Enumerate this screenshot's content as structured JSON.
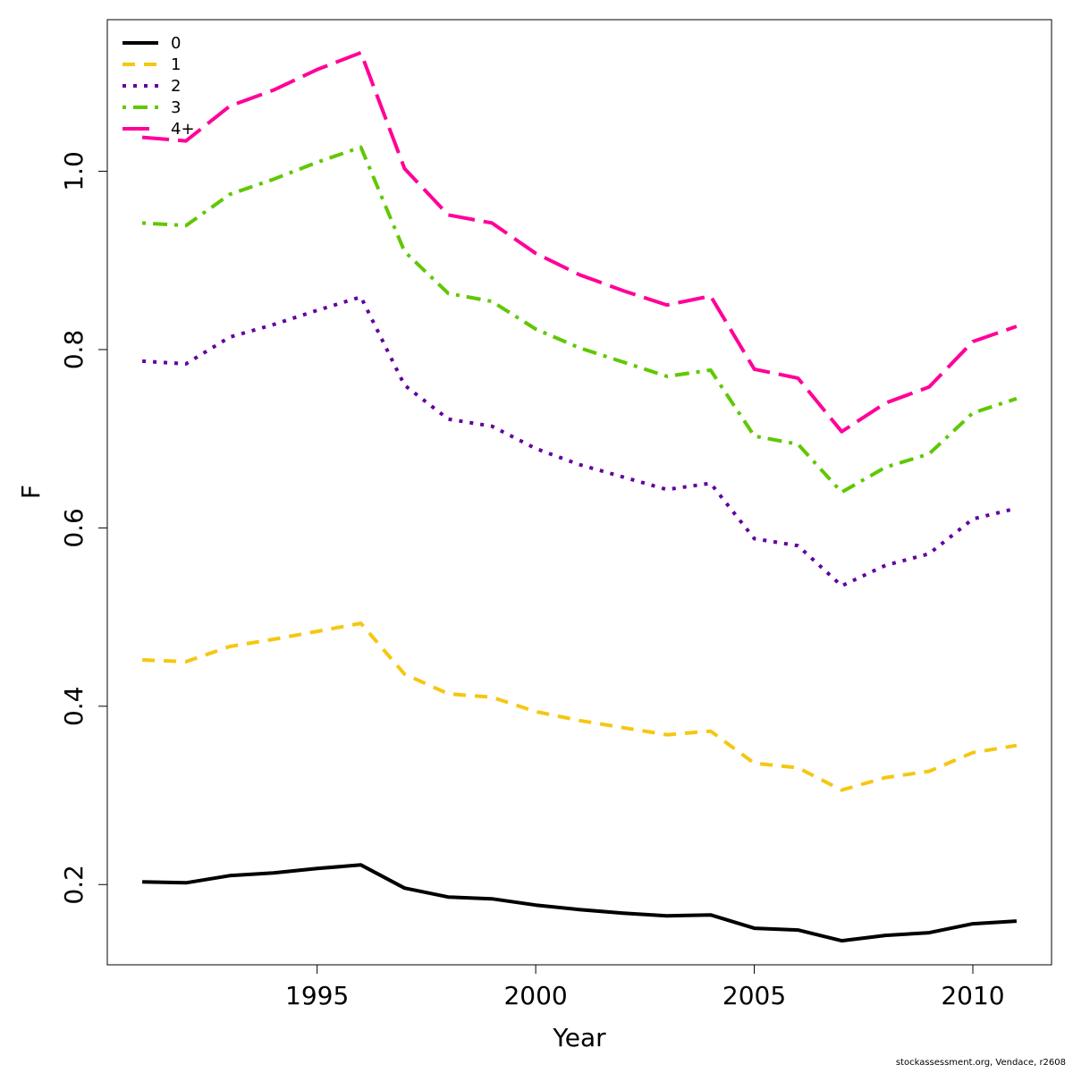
{
  "chart_data": {
    "type": "line",
    "title": "",
    "xlabel": "Year",
    "ylabel": "F",
    "xlim": [
      1990.2,
      2011.8
    ],
    "ylim": [
      0.11,
      1.17
    ],
    "x_ticks": [
      1995,
      2000,
      2005,
      2010
    ],
    "y_ticks": [
      0.2,
      0.4,
      0.6,
      0.8,
      1.0
    ],
    "y_tick_labels": [
      "0.2",
      "0.4",
      "0.6",
      "0.8",
      "1.0"
    ],
    "legend_position": "top-left",
    "x": [
      1991,
      1992,
      1993,
      1994,
      1995,
      1996,
      1997,
      1998,
      1999,
      2000,
      2001,
      2002,
      2003,
      2004,
      2005,
      2006,
      2007,
      2008,
      2009,
      2010,
      2011
    ],
    "series": [
      {
        "name": "0",
        "color": "#000000",
        "dash": "solid",
        "values": [
          0.203,
          0.202,
          0.21,
          0.213,
          0.218,
          0.222,
          0.196,
          0.186,
          0.184,
          0.177,
          0.172,
          0.168,
          0.165,
          0.166,
          0.151,
          0.149,
          0.137,
          0.143,
          0.146,
          0.156,
          0.159
        ]
      },
      {
        "name": "1",
        "color": "#F5C710",
        "dash": "dashed",
        "values": [
          0.452,
          0.45,
          0.467,
          0.475,
          0.484,
          0.493,
          0.436,
          0.414,
          0.41,
          0.394,
          0.384,
          0.376,
          0.368,
          0.372,
          0.336,
          0.331,
          0.306,
          0.32,
          0.327,
          0.348,
          0.356
        ]
      },
      {
        "name": "2",
        "color": "#61009E",
        "dash": "dotted",
        "values": [
          0.787,
          0.784,
          0.814,
          0.828,
          0.844,
          0.859,
          0.76,
          0.722,
          0.714,
          0.689,
          0.671,
          0.657,
          0.643,
          0.65,
          0.588,
          0.58,
          0.535,
          0.558,
          0.571,
          0.61,
          0.622
        ]
      },
      {
        "name": "3",
        "color": "#5FC800",
        "dash": "dotdash",
        "values": [
          0.942,
          0.939,
          0.974,
          0.991,
          1.01,
          1.027,
          0.91,
          0.863,
          0.854,
          0.823,
          0.802,
          0.786,
          0.77,
          0.777,
          0.703,
          0.694,
          0.64,
          0.668,
          0.683,
          0.729,
          0.745
        ]
      },
      {
        "name": "4+",
        "color": "#FF0099",
        "dash": "longdash",
        "values": [
          1.038,
          1.034,
          1.073,
          1.091,
          1.114,
          1.133,
          1.003,
          0.951,
          0.942,
          0.908,
          0.884,
          0.866,
          0.85,
          0.86,
          0.778,
          0.768,
          0.708,
          0.74,
          0.758,
          0.809,
          0.826
        ]
      }
    ]
  },
  "credit": "stockassessment.org, Vendace, r2608"
}
